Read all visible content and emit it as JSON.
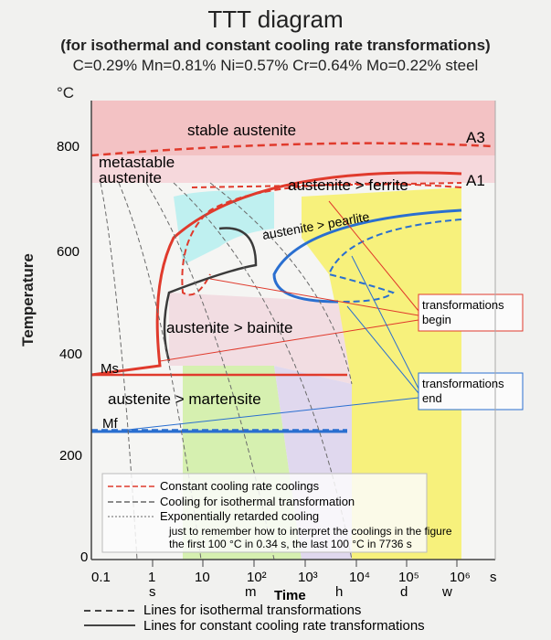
{
  "header": {
    "title": "TTT diagram",
    "subtitle1": "(for isothermal and constant cooling rate transformations)",
    "subtitle2": "C=0.29% Mn=0.81% Ni=0.57% Cr=0.64% Mo=0.22% steel"
  },
  "axes": {
    "y_unit": "°C",
    "y_label": "Temperature",
    "y_ticks": [
      "800",
      "600",
      "400",
      "200",
      "0"
    ],
    "x_ticks": [
      "0.1",
      "1",
      "10",
      "10²",
      "10³",
      "10⁴",
      "10⁵",
      "10⁶"
    ],
    "x_unit": "s",
    "x_label": "Time",
    "time_markers": [
      "s",
      "m",
      "h",
      "d",
      "w"
    ]
  },
  "regions": {
    "stable": "stable austenite",
    "metastable": "metastable austenite",
    "ferrite": "austenite > ferrite",
    "pearlite": "austenite > pearlite",
    "bainite": "austenite > bainite",
    "martensite": "austenite > martensite",
    "a3": "A3",
    "a1": "A1",
    "ms": "Ms",
    "mf": "Mf"
  },
  "callouts": {
    "begin": "transformations begin",
    "end": "transformations end"
  },
  "notes": {
    "constant": "Constant cooling rate coolings",
    "isothermal": "Cooling for isothermal transformation",
    "exponential": "Exponentially retarded cooling",
    "remember1": "just to remember how to interpret the coolings in the figure",
    "remember2": "the first 100 °C in 0.34 s, the last 100 °C in 7736 s"
  },
  "legend": {
    "isothermal": "Lines for isothermal transformations",
    "constant": "Lines for constant cooling rate transformations"
  },
  "colors": {
    "stable": "#f3c2c4",
    "ferrite": "#f6d8dc",
    "yellow": "#f7f17c",
    "cyan": "#bff0f0",
    "green": "#d6f0b0",
    "lavender": "#e0d8ee",
    "red": "#e03a2c",
    "blue": "#2a6fd0",
    "dark": "#3a3a3a"
  }
}
